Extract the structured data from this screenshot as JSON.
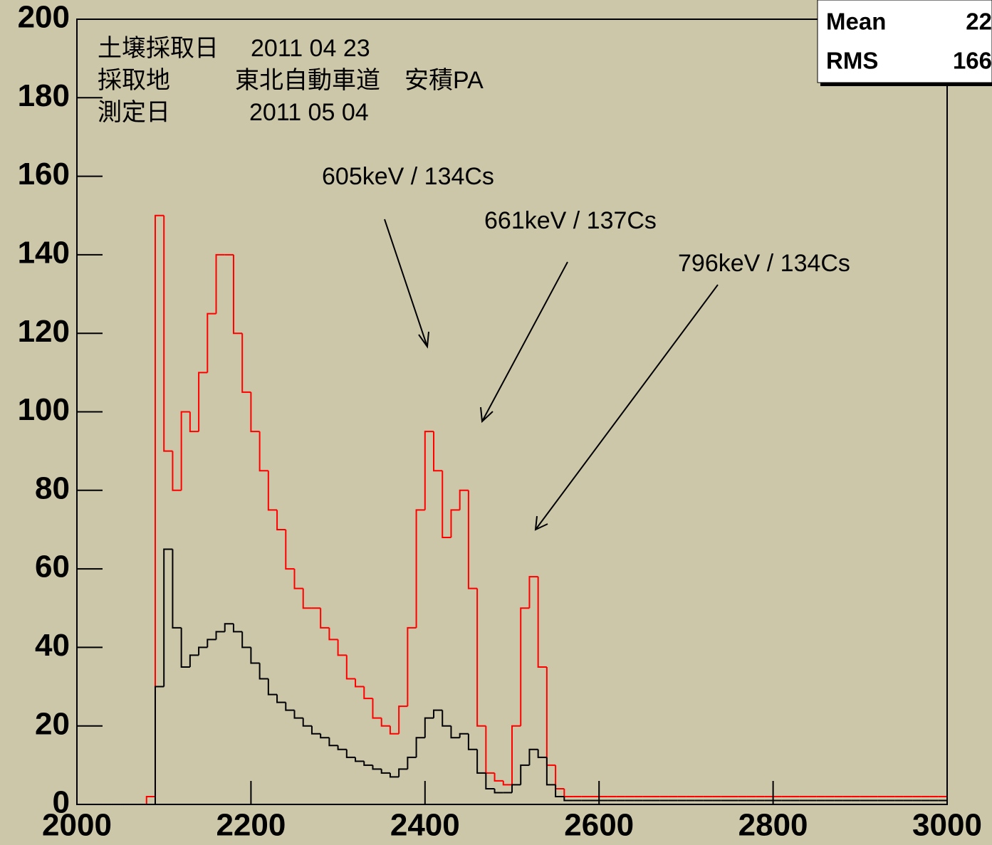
{
  "chart_data": {
    "type": "histogram",
    "bins": [
      2000,
      2010,
      2020,
      2030,
      2040,
      2050,
      2060,
      2070,
      2080,
      2090,
      2100,
      2110,
      2120,
      2130,
      2140,
      2150,
      2160,
      2170,
      2180,
      2190,
      2200,
      2210,
      2220,
      2230,
      2240,
      2250,
      2260,
      2270,
      2280,
      2290,
      2300,
      2310,
      2320,
      2330,
      2340,
      2350,
      2360,
      2370,
      2380,
      2390,
      2400,
      2410,
      2420,
      2430,
      2440,
      2450,
      2460,
      2470,
      2480,
      2490,
      2500,
      2510,
      2520,
      2530,
      2540,
      2550,
      2560,
      2570,
      2580,
      2590,
      2600,
      2610,
      2620,
      2630,
      2640,
      2650,
      2660,
      2670,
      2680,
      2690,
      2700,
      2710,
      2720,
      2730,
      2740,
      2750,
      2760,
      2770,
      2780,
      2790,
      2800,
      2810,
      2820,
      2830,
      2840,
      2850,
      2860,
      2870,
      2880,
      2890,
      2900,
      2910,
      2920,
      2930,
      2940,
      2950,
      2960,
      2970,
      2980,
      2990,
      3000
    ],
    "series": [
      {
        "color": "#ff0000",
        "values": [
          0,
          0,
          0,
          0,
          0,
          0,
          0,
          0,
          2,
          150,
          90,
          80,
          100,
          95,
          110,
          125,
          140,
          140,
          120,
          105,
          95,
          85,
          75,
          70,
          60,
          55,
          50,
          50,
          45,
          42,
          38,
          32,
          30,
          27,
          22,
          20,
          18,
          25,
          45,
          75,
          95,
          85,
          68,
          75,
          80,
          55,
          20,
          8,
          6,
          5,
          20,
          50,
          58,
          35,
          10,
          4,
          2,
          2,
          2,
          2,
          2,
          2,
          2,
          2,
          2,
          2,
          2,
          2,
          2,
          2,
          2,
          2,
          2,
          2,
          2,
          2,
          2,
          2,
          2,
          2,
          2,
          2,
          2,
          2,
          2,
          2,
          2,
          2,
          2,
          2,
          2,
          2,
          2,
          2,
          2,
          2,
          2,
          2,
          2,
          2
        ]
      },
      {
        "color": "#000000",
        "values": [
          0,
          0,
          0,
          0,
          0,
          0,
          0,
          0,
          0,
          30,
          65,
          45,
          35,
          38,
          40,
          42,
          44,
          46,
          44,
          40,
          36,
          32,
          28,
          26,
          24,
          22,
          20,
          18,
          17,
          15,
          14,
          12,
          11,
          10,
          9,
          8,
          7,
          9,
          12,
          17,
          22,
          24,
          20,
          17,
          18,
          14,
          8,
          4,
          3,
          3,
          5,
          10,
          14,
          12,
          5,
          2,
          1,
          1,
          1,
          1,
          1,
          1,
          1,
          1,
          1,
          1,
          1,
          1,
          1,
          1,
          1,
          1,
          1,
          1,
          1,
          1,
          1,
          1,
          1,
          1,
          1,
          1,
          1,
          1,
          1,
          1,
          1,
          1,
          1,
          1,
          1,
          1,
          1,
          1,
          1,
          1,
          1,
          1,
          1,
          1
        ]
      }
    ],
    "xlim": [
      2000,
      3000
    ],
    "ylim": [
      0,
      200
    ],
    "xticks": [
      2000,
      2200,
      2400,
      2600,
      2800,
      3000
    ],
    "yticks": [
      0,
      20,
      40,
      60,
      80,
      100,
      120,
      140,
      160,
      180,
      200
    ],
    "annotations": [
      "土壌採取日",
      "2011 04 23",
      "採取地",
      "東北自動車道　安積PA",
      "測定日",
      "2011 05 04",
      "605keV / 134Cs",
      "661keV / 137Cs",
      "796keV / 134Cs"
    ],
    "stats": {
      "labels": [
        "Mean",
        "RMS"
      ],
      "values": [
        "22",
        "166"
      ]
    }
  }
}
